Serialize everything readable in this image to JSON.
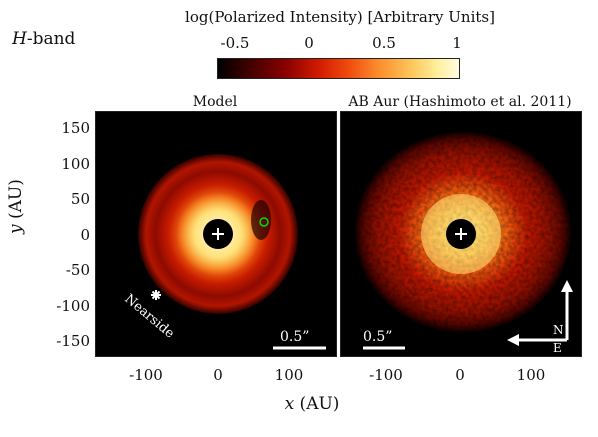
{
  "band_label": {
    "italic": "H",
    "rest": "-band"
  },
  "colorbar": {
    "title": "log(Polarized Intensity) [Arbitrary Units]",
    "ticks": [
      "-0.5",
      "0",
      "0.5",
      "1"
    ]
  },
  "panels": [
    {
      "title": "Model",
      "scalebar_label": "0.5”",
      "annotation": "Nearside"
    },
    {
      "title": "AB Aur (Hashimoto et al. 2011)",
      "scalebar_label": "0.5”",
      "compass_north": "N",
      "compass_east": "E"
    }
  ],
  "axes": {
    "ylabel_italic": "y",
    "ylabel_rest": " (AU)",
    "xlabel_italic": "x",
    "xlabel_rest": " (AU)",
    "yticks": [
      "150",
      "100",
      "50",
      "0",
      "-50",
      "-100",
      "-150"
    ],
    "xticks_left": [
      "-100",
      "0",
      "100"
    ],
    "xticks_right": [
      "-100",
      "0",
      "100"
    ]
  }
}
